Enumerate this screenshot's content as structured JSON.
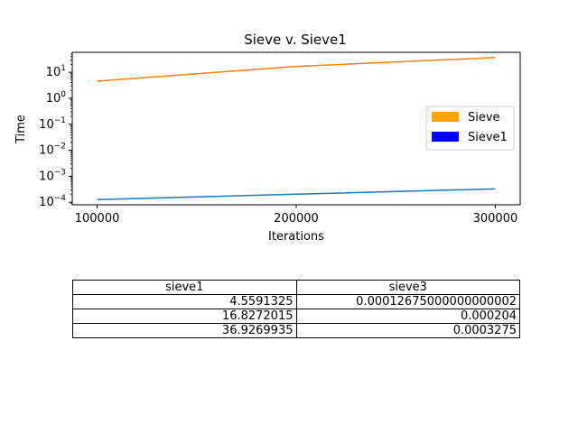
{
  "chart_data": {
    "type": "line",
    "title": "Sieve v. Sieve1",
    "xlabel": "Iterations",
    "ylabel": "Time",
    "yscale": "log",
    "xlim": [
      87500,
      312500
    ],
    "ylim": [
      8.01e-05,
      58.5
    ],
    "x": [
      100000,
      200000,
      300000
    ],
    "x_ticks": [
      "100000",
      "200000",
      "300000"
    ],
    "y_ticks": [
      {
        "base": "10",
        "exp": "1"
      },
      {
        "base": "10",
        "exp": "0"
      },
      {
        "base": "10",
        "exp": "−1"
      },
      {
        "base": "10",
        "exp": "−2"
      },
      {
        "base": "10",
        "exp": "−3"
      },
      {
        "base": "10",
        "exp": "−4"
      }
    ],
    "series": [
      {
        "values": [
          4.5591325,
          16.8272015,
          36.9269935
        ],
        "color": "#ff7f0e"
      },
      {
        "values": [
          0.00012675,
          0.000204,
          0.0003275
        ],
        "color": "#1f77b4"
      }
    ],
    "legend": {
      "location": "center-right",
      "entries": [
        {
          "label": "Sieve",
          "color": "#ffa500"
        },
        {
          "label": "Sieve1",
          "color": "#0000ff"
        }
      ]
    },
    "grid": false
  },
  "table": {
    "headers": [
      "sieve1",
      "sieve3"
    ],
    "rows": [
      [
        "4.5591325",
        "0.00012675000000000002"
      ],
      [
        "16.8272015",
        "0.000204"
      ],
      [
        "36.9269935",
        "0.0003275"
      ]
    ]
  }
}
